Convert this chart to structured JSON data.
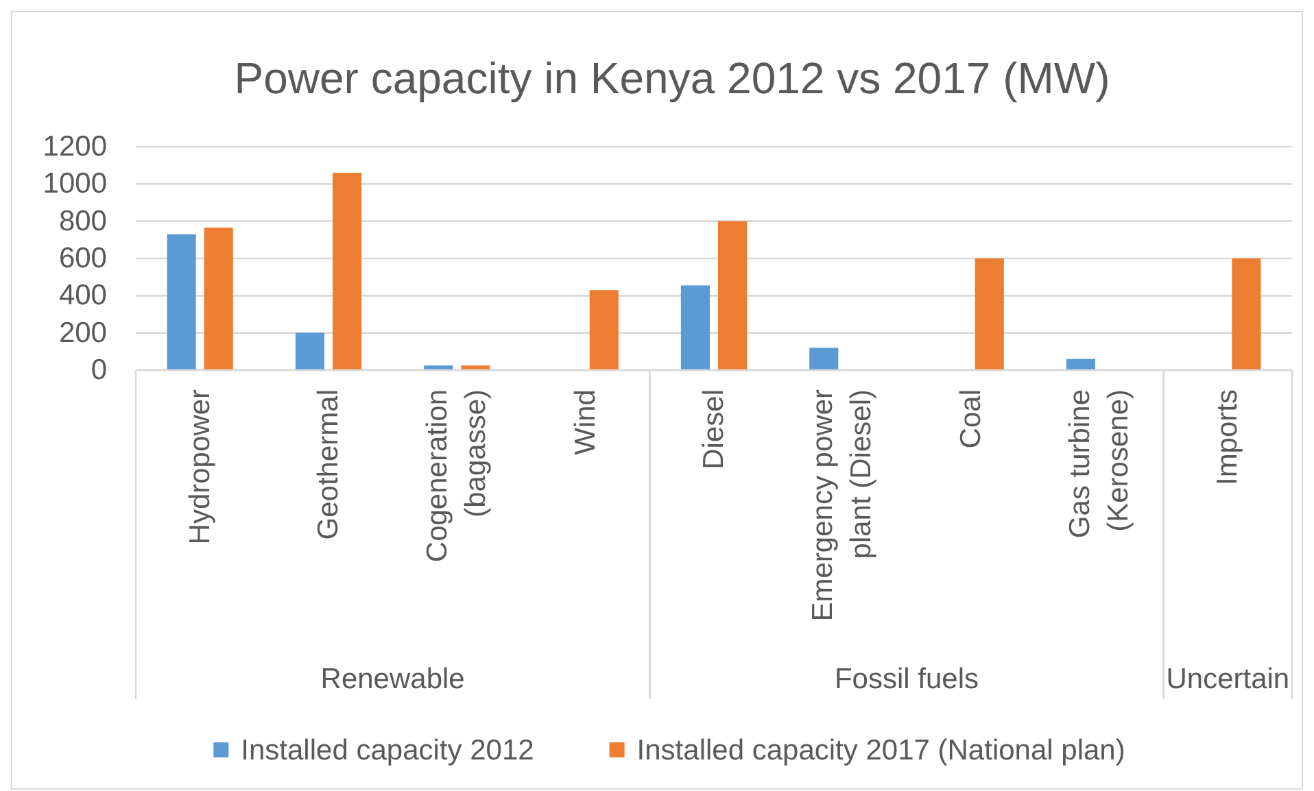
{
  "chart_data": {
    "type": "bar",
    "title": "Power capacity in Kenya 2012 vs 2017 (MW)",
    "categories": [
      "Hydropower",
      "Geothermal",
      "Cogeneration (bagasse)",
      "Wind",
      "Diesel",
      "Emergency power plant (Diesel)",
      "Coal",
      "Gas turbine (Kerosene)",
      "Imports"
    ],
    "series": [
      {
        "name": "Installed capacity 2012",
        "color": "#5b9bd5",
        "values": [
          730,
          200,
          25,
          null,
          455,
          120,
          null,
          60,
          null
        ]
      },
      {
        "name": "Installed capacity 2017 (National plan)",
        "color": "#ed7d31",
        "values": [
          765,
          1060,
          25,
          430,
          800,
          null,
          600,
          null,
          600
        ]
      }
    ],
    "ylim": [
      0,
      1200
    ],
    "yticks": [
      0,
      200,
      400,
      600,
      800,
      1000,
      1200
    ],
    "grid": "y",
    "legend": "bottom",
    "annotations": [
      "Renewable",
      "Fossil fuels",
      "Uncertain"
    ]
  }
}
